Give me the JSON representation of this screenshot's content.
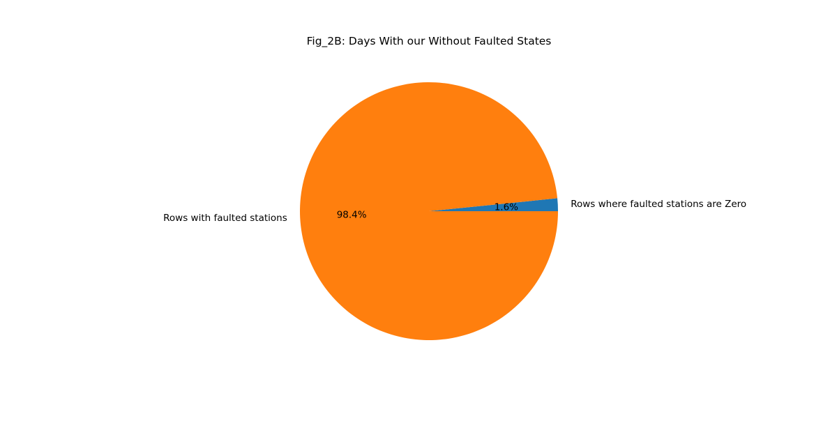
{
  "chart_data": {
    "type": "pie",
    "title": "Fig_2B: Days With our Without Faulted States",
    "slices": [
      {
        "label": "Rows where faulted stations are Zero",
        "value": 1.6,
        "pct_label": "1.6%",
        "color": "#1f77b4"
      },
      {
        "label": "Rows with faulted stations",
        "value": 98.4,
        "pct_label": "98.4%",
        "color": "#ff7f0e"
      }
    ],
    "start_angle_deg": 0,
    "direction": "counterclockwise",
    "legend": "none"
  }
}
